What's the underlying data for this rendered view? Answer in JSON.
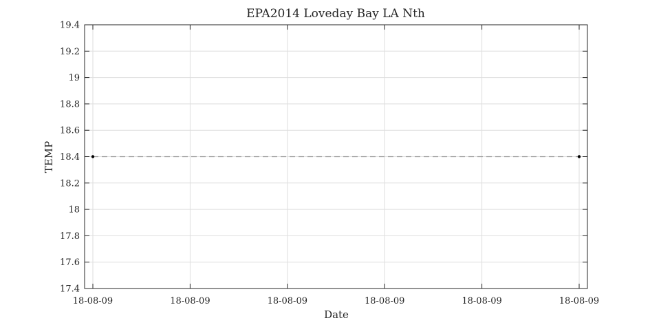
{
  "chart_data": {
    "type": "line",
    "title": "EPA2014 Loveday Bay LA Nth",
    "xlabel": "Date",
    "ylabel": "TEMP",
    "x_tick_labels": [
      "18-08-09",
      "18-08-09",
      "18-08-09",
      "18-08-09",
      "18-08-09",
      "18-08-09"
    ],
    "y_ticks": [
      17.4,
      17.6,
      17.8,
      18,
      18.2,
      18.4,
      18.6,
      18.8,
      19,
      19.2,
      19.4
    ],
    "ylim": [
      17.4,
      19.4
    ],
    "grid": true,
    "series": [
      {
        "values": [
          18.4,
          18.4
        ],
        "line_style": "dashed",
        "color": "#999999",
        "marker_color": "#000000"
      }
    ]
  }
}
